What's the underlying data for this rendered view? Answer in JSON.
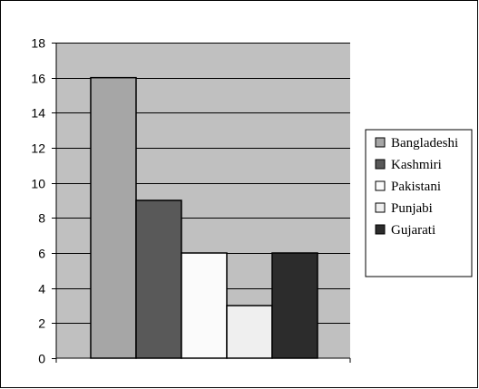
{
  "chart_data": {
    "type": "bar",
    "title": "",
    "xlabel": "",
    "ylabel": "",
    "ylim": [
      0,
      18
    ],
    "yticks": [
      0,
      2,
      4,
      6,
      8,
      10,
      12,
      14,
      16,
      18
    ],
    "grid": true,
    "legend_position": "right",
    "plot_background": "#c0c0c0",
    "series": [
      {
        "name": "Bangladeshi",
        "value": 16,
        "color": "#a6a6a6"
      },
      {
        "name": "Kashmiri",
        "value": 9,
        "color": "#595959"
      },
      {
        "name": "Pakistani",
        "value": 6,
        "color": "#fbfbfb"
      },
      {
        "name": "Punjabi",
        "value": 3,
        "color": "#efefef"
      },
      {
        "name": "Gujarati",
        "value": 6,
        "color": "#2c2c2c"
      }
    ]
  }
}
